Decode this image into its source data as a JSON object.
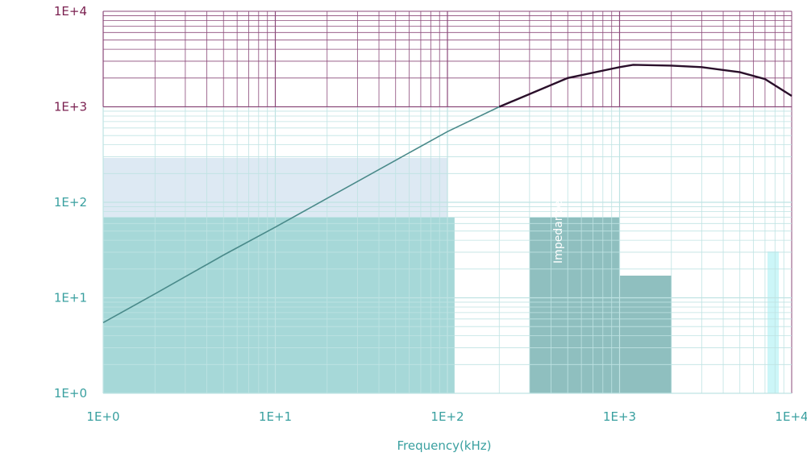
{
  "chart_data": {
    "type": "line",
    "title": "",
    "xlabel": "Frequency(kHz)",
    "ylabel": "Impedance",
    "x_scale": "log",
    "y_scale": "log",
    "xlim": [
      1,
      10000
    ],
    "ylim": [
      1,
      10000
    ],
    "x_ticks": [
      "1E+0",
      "1E+1",
      "1E+2",
      "1E+3",
      "1E+4"
    ],
    "y_ticks": [
      "1E+0",
      "1E+1",
      "1E+2",
      "1E+3",
      "1E+4"
    ],
    "grid": true,
    "legend": "none",
    "colors": {
      "grid_upper": "#8b4a7a",
      "grid_lower": "#bfe3e3",
      "tick_upper": "#7a1f4f",
      "tick_lower": "#3aa0a0",
      "curve_upper": "#2a0f2a",
      "curve_lower": "#4a8a8a",
      "fill_block": "#a6d8d8",
      "fill_block_dark": "#8fbfbf",
      "fill_light": "#dde9f3"
    },
    "series": [
      {
        "x": [
          1,
          2,
          5,
          10,
          20,
          50,
          100,
          200,
          500,
          1000,
          1200,
          2000,
          3000,
          5000,
          7000,
          10000
        ],
        "y": [
          5.5,
          11,
          28,
          55,
          110,
          275,
          550,
          1000,
          2000,
          2600,
          2750,
          2700,
          2600,
          2300,
          1950,
          1300
        ]
      }
    ]
  }
}
